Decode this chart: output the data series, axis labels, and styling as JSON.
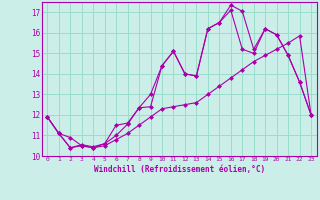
{
  "xlabel": "Windchill (Refroidissement éolien,°C)",
  "bg_color": "#cceee8",
  "line_color": "#aa00aa",
  "grid_color": "#99ddcc",
  "xlim": [
    -0.5,
    23.5
  ],
  "ylim": [
    10,
    17.5
  ],
  "yticks": [
    10,
    11,
    12,
    13,
    14,
    15,
    16,
    17
  ],
  "xticks": [
    0,
    1,
    2,
    3,
    4,
    5,
    6,
    7,
    8,
    9,
    10,
    11,
    12,
    13,
    14,
    15,
    16,
    17,
    18,
    19,
    20,
    21,
    22,
    23
  ],
  "line1_x": [
    0,
    1,
    2,
    3,
    4,
    5,
    6,
    7,
    8,
    9,
    10,
    11,
    12,
    13,
    14,
    15,
    16,
    17,
    18,
    19,
    20,
    21,
    22,
    23
  ],
  "line1_y": [
    11.9,
    11.1,
    10.9,
    10.5,
    10.4,
    10.5,
    10.8,
    11.1,
    11.5,
    11.9,
    12.3,
    12.4,
    12.5,
    12.6,
    13.0,
    13.4,
    13.8,
    14.2,
    14.6,
    14.9,
    15.2,
    15.5,
    15.85,
    12.0
  ],
  "line2_x": [
    0,
    1,
    2,
    3,
    4,
    5,
    6,
    7,
    8,
    9,
    10,
    11,
    12,
    13,
    14,
    15,
    16,
    17,
    18,
    19,
    20,
    21,
    22,
    23
  ],
  "line2_y": [
    11.9,
    11.1,
    10.4,
    10.5,
    10.4,
    10.6,
    11.5,
    11.6,
    12.35,
    12.4,
    14.4,
    15.1,
    14.0,
    13.9,
    16.2,
    16.5,
    17.35,
    17.05,
    15.2,
    16.2,
    15.9,
    14.9,
    13.6,
    12.0
  ],
  "line3_x": [
    0,
    1,
    2,
    3,
    4,
    5,
    6,
    7,
    8,
    9,
    10,
    11,
    12,
    13,
    14,
    15,
    16,
    17,
    18,
    19,
    20,
    21,
    22,
    23
  ],
  "line3_y": [
    11.9,
    11.1,
    10.4,
    10.55,
    10.45,
    10.6,
    11.0,
    11.55,
    12.35,
    13.0,
    14.4,
    15.1,
    14.0,
    13.9,
    16.2,
    16.5,
    17.1,
    15.2,
    15.0,
    16.2,
    15.9,
    14.9,
    13.6,
    12.0
  ]
}
